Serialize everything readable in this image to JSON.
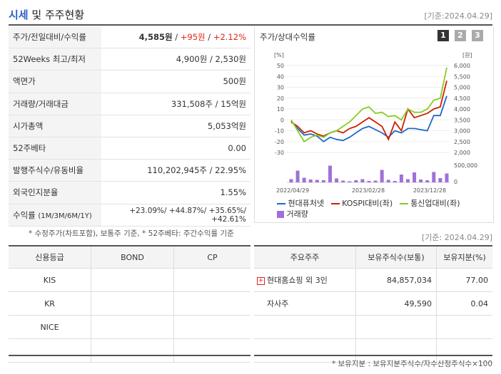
{
  "header": {
    "title_accent": "시세",
    "title_rest": " 및 주주현황",
    "date": "[기준:2024.04.29]"
  },
  "info": [
    {
      "label": "주가/전일대비/수익률",
      "price": "4,585원",
      "change": "+95원",
      "rate": "+2.12%"
    },
    {
      "label": "52Weeks 최고/최저",
      "value": "4,900원 / 2,530원"
    },
    {
      "label": "액면가",
      "value": "500원"
    },
    {
      "label": "거래량/거래대금",
      "value": "331,508주 / 15억원"
    },
    {
      "label": "시가총액",
      "value": "5,053억원"
    },
    {
      "label": "52주베타",
      "value": "0.00"
    },
    {
      "label": "발행주식수/유동비율",
      "value": "110,202,945주 / 22.95%"
    },
    {
      "label": "외국인지분율",
      "value": "1.55%"
    },
    {
      "label": "수익률",
      "label_sub": "(1M/3M/6M/1Y)",
      "value": "+23.09%/ +44.87%/ +35.65%/ +42.61%"
    }
  ],
  "note1": "* 수정주가(차트포함), 보통주 기준, * 52주베타: 주간수익률 기준",
  "chart": {
    "title": "주가/상대수익률",
    "period_buttons": [
      "1",
      "2",
      "3"
    ],
    "left_unit": "[%]",
    "right_unit": "[원]",
    "left_ticks": [
      "50",
      "40",
      "30",
      "20",
      "10",
      "0",
      "-10",
      "-20",
      "-30"
    ],
    "right_ticks": [
      "6,000",
      "5,500",
      "5,000",
      "4,500",
      "4,000",
      "3,500",
      "3,000",
      "2,500",
      "2,000"
    ],
    "vol_tick": "500,000",
    "vol_zero": "0",
    "x_labels": [
      "2022/04/29",
      "2023/02/28",
      "2023/12/28"
    ],
    "legend": [
      "현대퓨처넷",
      "KOSPI대비(좌)",
      "통신업대비(좌)",
      "거래량"
    ],
    "colors": {
      "stock": "#2266cc",
      "kospi": "#cc2200",
      "sector": "#88cc22",
      "volume": "#a070d8"
    }
  },
  "chart_data": {
    "type": "line",
    "series": [
      {
        "name": "현대퓨처넷",
        "values": [
          -1,
          -8,
          -14,
          -13,
          -15,
          -20,
          -16,
          -18,
          -19,
          -16,
          -12,
          -8,
          -6,
          -9,
          -12,
          -16,
          -10,
          -12,
          -8,
          -8,
          -9,
          -10,
          4,
          4,
          22
        ]
      },
      {
        "name": "KOSPI대비(좌)",
        "values": [
          -2,
          -6,
          -12,
          -10,
          -13,
          -15,
          -12,
          -10,
          -12,
          -8,
          -6,
          -2,
          2,
          -2,
          -6,
          -18,
          -2,
          -10,
          10,
          2,
          4,
          6,
          10,
          12,
          36
        ]
      },
      {
        "name": "통신업대비(좌)",
        "values": [
          0,
          -10,
          -20,
          -16,
          -14,
          -16,
          -12,
          -10,
          -6,
          -2,
          4,
          10,
          12,
          6,
          7,
          3,
          4,
          0,
          10,
          7,
          7,
          10,
          18,
          20,
          48
        ]
      },
      {
        "name": "거래량",
        "values": [
          90000,
          330000,
          130000,
          80000,
          70000,
          60000,
          470000,
          110000,
          50000,
          30000,
          60000,
          90000,
          40000,
          50000,
          350000,
          70000,
          40000,
          220000,
          90000,
          280000,
          80000,
          60000,
          290000,
          120000,
          250000
        ]
      }
    ],
    "ylim": [
      -30,
      50
    ]
  },
  "bottom": {
    "date": "[기준: 2024.04.29]",
    "credit": {
      "headers": [
        "신용등급",
        "BOND",
        "CP"
      ],
      "rows": [
        [
          "KIS",
          "",
          ""
        ],
        [
          "KR",
          "",
          ""
        ],
        [
          "NICE",
          "",
          ""
        ],
        [
          "",
          "",
          ""
        ]
      ]
    },
    "holders": {
      "headers": [
        "주요주주",
        "보유주식수(보통)",
        "보유지분(%)"
      ],
      "rows": [
        {
          "name": "현대홈쇼핑 외 3인",
          "shares": "84,857,034",
          "pct": "77.00",
          "expand": "+"
        },
        {
          "name": "자사주",
          "shares": "49,590",
          "pct": "0.04"
        }
      ]
    },
    "note": "* 보유지분 : 보유지분주식수/자수산정주식수×100"
  }
}
